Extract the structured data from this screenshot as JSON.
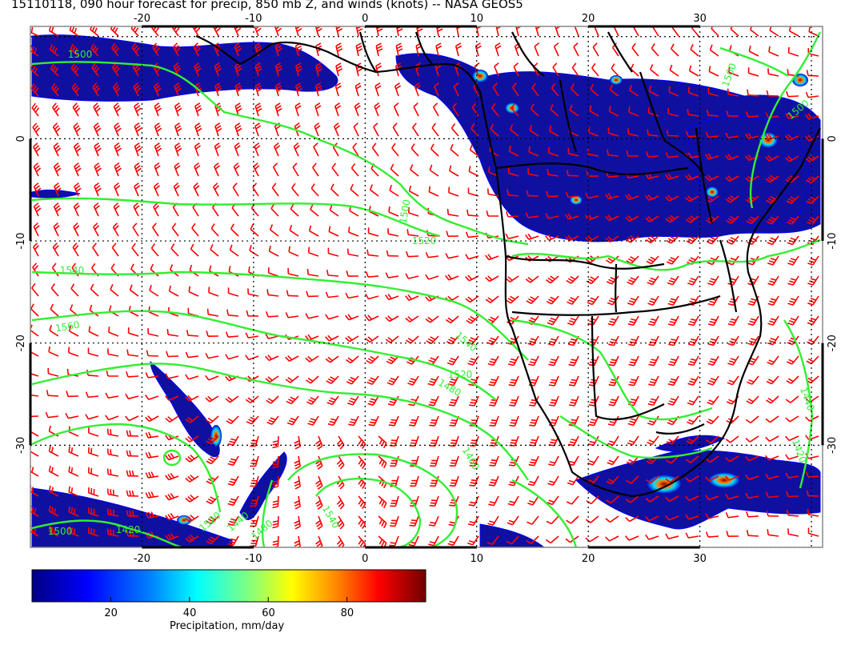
{
  "title": "15110118, 090 hour forecast for precip, 850 mb Z, and winds (knots) -- NASA GEOS5",
  "map": {
    "lon_labels": [
      "-20",
      "-10",
      "0",
      "10",
      "20",
      "30"
    ],
    "lat_labels": [
      "0",
      "-10",
      "-20",
      "-30"
    ],
    "lon_range": [
      -30,
      41
    ],
    "lat_range": [
      -40,
      11
    ],
    "contour_labels": [
      "1500",
      "1500",
      "1500",
      "1500",
      "1520",
      "1540",
      "1560",
      "1540",
      "1520",
      "1480",
      "1460",
      "1440",
      "1420",
      "1540",
      "1520",
      "1440",
      "1420",
      "1500",
      "1480"
    ],
    "colors": {
      "contour": "#33ee33",
      "wind_barb": "#ff0000",
      "coastline": "#000000",
      "grid": "#000000"
    }
  },
  "colorbar": {
    "ticks": [
      "20",
      "40",
      "60",
      "80"
    ],
    "tick_values": [
      20,
      40,
      60,
      80
    ],
    "range": [
      0,
      100
    ],
    "label": "Precipitation, mm/day",
    "stops": [
      "#000080",
      "#0000ff",
      "#0080ff",
      "#00ffff",
      "#80ff80",
      "#ffff00",
      "#ff8000",
      "#ff0000",
      "#800000"
    ]
  }
}
